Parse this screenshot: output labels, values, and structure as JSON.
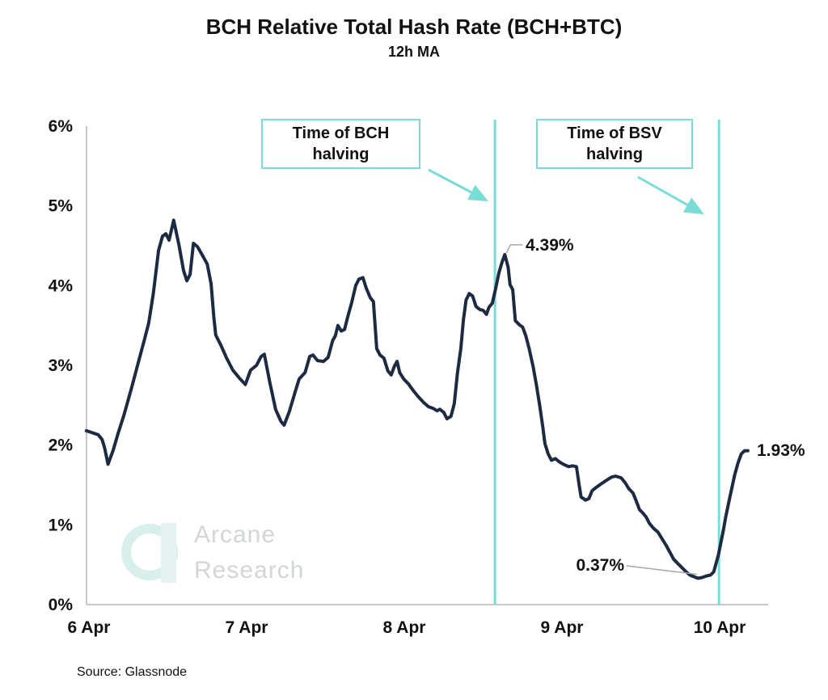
{
  "header": {
    "title": "BCH Relative Total Hash Rate (BCH+BTC)",
    "subtitle": "12h MA"
  },
  "annotations": {
    "bch_box": {
      "line1": "Time of BCH",
      "line2": "halving"
    },
    "bsv_box": {
      "line1": "Time of BSV",
      "line2": "halving"
    },
    "peak_label": "4.39%",
    "trough_label": "0.37%",
    "end_label": "1.93%"
  },
  "watermark": {
    "line1": "Arcane",
    "line2": "Research"
  },
  "source_note": "Source: Glassnode",
  "colors": {
    "line": "#1c2b42",
    "accent_teal": "#79dcd5",
    "axis": "#c8c8c8",
    "leader": "#a8a8a8",
    "text": "#111111",
    "watermark_text": "#d2d6d9",
    "watermark_mark": "#d9efec"
  },
  "chart_data": {
    "type": "line",
    "title": "BCH Relative Total Hash Rate (BCH+BTC)",
    "subtitle": "12h MA",
    "xlabel": "",
    "ylabel": "",
    "x_unit": "hours since 6 Apr 00:00",
    "xlim": [
      -0.5,
      102
    ],
    "ylim": [
      0,
      6
    ],
    "grid": false,
    "x_tick_hours": [
      0,
      24,
      48,
      72,
      96
    ],
    "x_tick_labels": [
      "6 Apr",
      "7 Apr",
      "8 Apr",
      "9 Apr",
      "10 Apr"
    ],
    "y_tick_labels": [
      "0%",
      "1%",
      "2%",
      "3%",
      "4%",
      "5%",
      "6%"
    ],
    "series": [
      {
        "name": "BCH relative total hash rate, 12h MA (%)",
        "x_hours": [
          -0.4,
          1.4,
          2.0,
          2.4,
          2.9,
          3.7,
          4.4,
          5.3,
          6.5,
          7.4,
          8.4,
          9.1,
          9.8,
          10.6,
          11.2,
          11.7,
          12.2,
          12.9,
          13.7,
          14.4,
          14.9,
          15.4,
          15.9,
          16.5,
          17.2,
          18.0,
          18.6,
          19.0,
          19.3,
          20.1,
          20.9,
          21.9,
          22.9,
          23.8,
          24.6,
          25.5,
          26.2,
          26.7,
          27.5,
          28.4,
          29.2,
          29.7,
          30.5,
          31.4,
          32.0,
          32.9,
          33.6,
          34.1,
          34.8,
          35.7,
          36.4,
          37.1,
          37.5,
          37.9,
          38.4,
          38.9,
          39.4,
          40.0,
          40.6,
          41.1,
          41.7,
          42.2,
          42.8,
          43.3,
          43.8,
          44.3,
          44.9,
          45.5,
          46.0,
          46.5,
          46.9,
          47.3,
          47.9,
          48.6,
          49.4,
          50.2,
          51.0,
          51.7,
          52.4,
          53.0,
          53.4,
          54.0,
          54.5,
          55.1,
          55.6,
          56.1,
          56.6,
          57.0,
          57.4,
          57.9,
          58.4,
          58.9,
          59.5,
          60.0,
          60.5,
          60.9,
          61.4,
          61.9,
          62.4,
          62.9,
          63.3,
          63.8,
          64.1,
          64.5,
          64.9,
          65.5,
          66.0,
          66.5,
          67.0,
          67.6,
          68.1,
          68.6,
          69.1,
          69.4,
          69.9,
          70.4,
          71.0,
          71.6,
          72.2,
          73.0,
          73.6,
          74.2,
          74.6,
          74.9,
          75.6,
          76.1,
          76.6,
          77.2,
          77.9,
          78.8,
          79.6,
          80.2,
          81.0,
          81.6,
          82.2,
          82.8,
          83.3,
          83.8,
          84.3,
          84.8,
          85.3,
          85.9,
          86.6,
          87.2,
          87.8,
          88.4,
          89.0,
          89.7,
          90.3,
          90.9,
          91.5,
          92.1,
          92.7,
          93.3,
          94.0,
          94.6,
          95.1,
          95.4,
          95.8,
          96.2,
          96.6,
          96.9,
          97.3,
          97.8,
          98.3,
          98.8,
          99.3,
          99.8,
          100.3
        ],
        "y_percent": [
          2.18,
          2.13,
          2.07,
          1.96,
          1.76,
          1.94,
          2.14,
          2.37,
          2.72,
          3.0,
          3.31,
          3.53,
          3.9,
          4.44,
          4.62,
          4.65,
          4.57,
          4.82,
          4.51,
          4.19,
          4.06,
          4.14,
          4.53,
          4.49,
          4.39,
          4.27,
          4.02,
          3.61,
          3.38,
          3.25,
          3.1,
          2.94,
          2.84,
          2.76,
          2.94,
          3.0,
          3.11,
          3.14,
          2.8,
          2.45,
          2.3,
          2.25,
          2.42,
          2.67,
          2.83,
          2.91,
          3.11,
          3.13,
          3.06,
          3.05,
          3.1,
          3.31,
          3.37,
          3.5,
          3.43,
          3.45,
          3.61,
          3.79,
          4.0,
          4.08,
          4.1,
          3.97,
          3.85,
          3.8,
          3.21,
          3.13,
          3.09,
          2.93,
          2.88,
          2.99,
          3.05,
          2.91,
          2.83,
          2.77,
          2.68,
          2.6,
          2.53,
          2.48,
          2.46,
          2.43,
          2.45,
          2.41,
          2.33,
          2.36,
          2.52,
          2.91,
          3.21,
          3.57,
          3.82,
          3.9,
          3.87,
          3.74,
          3.7,
          3.69,
          3.64,
          3.73,
          3.78,
          3.96,
          4.16,
          4.3,
          4.39,
          4.23,
          4.01,
          3.95,
          3.56,
          3.51,
          3.48,
          3.37,
          3.21,
          2.99,
          2.76,
          2.5,
          2.22,
          2.02,
          1.89,
          1.81,
          1.83,
          1.79,
          1.76,
          1.73,
          1.74,
          1.73,
          1.51,
          1.35,
          1.31,
          1.33,
          1.43,
          1.47,
          1.51,
          1.56,
          1.6,
          1.61,
          1.59,
          1.53,
          1.45,
          1.4,
          1.3,
          1.19,
          1.15,
          1.1,
          1.02,
          0.96,
          0.91,
          0.83,
          0.75,
          0.66,
          0.57,
          0.51,
          0.46,
          0.41,
          0.37,
          0.35,
          0.33,
          0.34,
          0.36,
          0.37,
          0.41,
          0.5,
          0.62,
          0.78,
          0.95,
          1.09,
          1.25,
          1.44,
          1.63,
          1.78,
          1.89,
          1.93,
          1.93
        ]
      }
    ],
    "events": [
      {
        "label": "Time of BCH halving",
        "x_hours": 61.8
      },
      {
        "label": "Time of BSV halving",
        "x_hours": 95.9
      }
    ],
    "point_labels": [
      {
        "text": "4.39%",
        "x_hours": 63.3,
        "y_percent": 4.39
      },
      {
        "text": "0.37%",
        "x_hours": 94.6,
        "y_percent": 0.37
      },
      {
        "text": "1.93%",
        "x_hours": 100.3,
        "y_percent": 1.93
      }
    ],
    "legend": false
  }
}
